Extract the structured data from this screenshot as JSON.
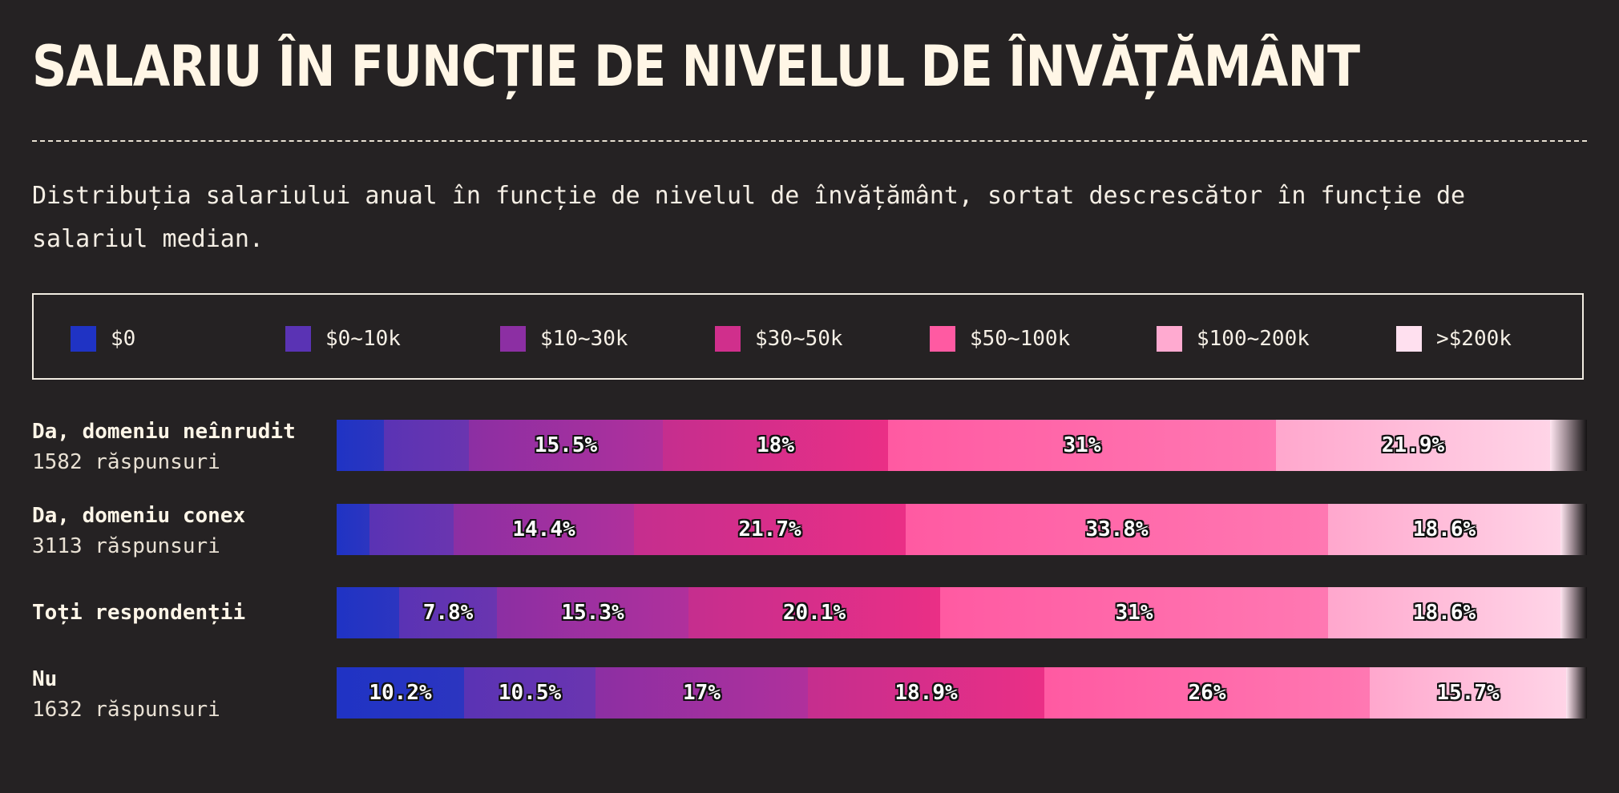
{
  "header": {
    "title": "SALARIU ÎN FUNCȚIE DE NIVELUL DE ÎNVĂȚĂMÂNT",
    "subtitle": "Distribuția salariului anual în funcție de nivelul de învățământ, sortat descrescător în funcție de salariul median."
  },
  "legend": [
    {
      "label": "$0",
      "color": "#1f33c4"
    },
    {
      "label": "$0~10k",
      "color": "#5a33b4"
    },
    {
      "label": "$10~30k",
      "color": "#8c2fa3"
    },
    {
      "label": "$30~50k",
      "color": "#d02f8c"
    },
    {
      "label": "$50~100k",
      "color": "#ff5aa2"
    },
    {
      "label": "$100~200k",
      "color": "#ffaad0"
    },
    {
      "label": ">$200k",
      "color": "#ffe0ef"
    }
  ],
  "chart_data": {
    "type": "bar",
    "orientation": "horizontal",
    "stacked": "100%",
    "categories": [
      "$0",
      "$0~10k",
      "$10~30k",
      "$30~50k",
      "$50~100k",
      "$100~200k",
      ">$200k"
    ],
    "rows": [
      {
        "label": "Da, domeniu neînrudit",
        "responses": "1582 răspunsuri",
        "values": [
          3.8,
          6.8,
          15.5,
          18,
          31,
          21.9,
          3
        ],
        "labels": [
          "",
          "",
          "15.5%",
          "18%",
          "31%",
          "21.9%",
          ""
        ]
      },
      {
        "label": "Da, domeniu conex",
        "responses": "3113 răspunsuri",
        "values": [
          2.6,
          6.7,
          14.4,
          21.7,
          33.8,
          18.6,
          2.2
        ],
        "labels": [
          "",
          "",
          "14.4%",
          "21.7%",
          "33.8%",
          "18.6%",
          ""
        ]
      },
      {
        "label": "Toți respondenții",
        "responses": "",
        "values": [
          5,
          7.8,
          15.3,
          20.1,
          31,
          18.6,
          2.2
        ],
        "labels": [
          "",
          "7.8%",
          "15.3%",
          "20.1%",
          "31%",
          "18.6%",
          ""
        ]
      },
      {
        "label": "Nu",
        "responses": "1632 răspunsuri",
        "values": [
          10.2,
          10.5,
          17,
          18.9,
          26,
          15.7,
          1.7
        ],
        "labels": [
          "10.2%",
          "10.5%",
          "17%",
          "18.9%",
          "26%",
          "15.7%",
          ""
        ]
      }
    ],
    "xlim": [
      0,
      100
    ]
  },
  "colors": {
    "background": "#252223",
    "text": "#fbf3e4",
    "gradients": [
      [
        "#1f33c4",
        "#2c35c0"
      ],
      [
        "#5a33b4",
        "#6a35b0"
      ],
      [
        "#8c2fa3",
        "#b0309c"
      ],
      [
        "#c52e8e",
        "#ea2f86"
      ],
      [
        "#ff5aa2",
        "#ff78b2"
      ],
      [
        "#ffa7cd",
        "#ffd4e7"
      ],
      [
        "#ffffff",
        "#111111"
      ]
    ]
  }
}
